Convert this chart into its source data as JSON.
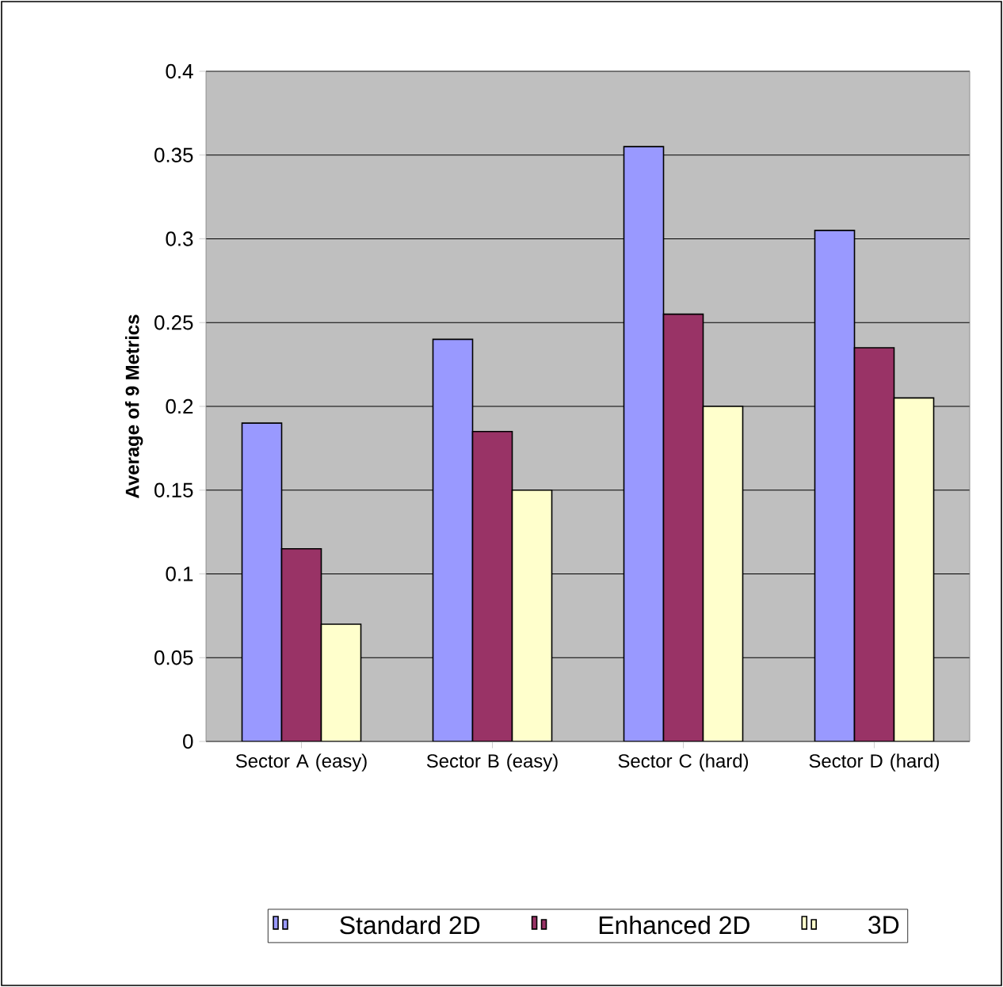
{
  "chart_data": {
    "type": "bar",
    "ylabel": "Average of 9 Metrics",
    "categories": [
      "Sector A (easy)",
      "Sector B (easy)",
      "Sector C (hard)",
      "Sector D (hard)"
    ],
    "series": [
      {
        "name": "Standard 2D",
        "color": "#9999ff",
        "values": [
          0.19,
          0.24,
          0.355,
          0.305
        ]
      },
      {
        "name": "Enhanced 2D",
        "color": "#993366",
        "values": [
          0.115,
          0.185,
          0.255,
          0.235
        ]
      },
      {
        "name": "3D",
        "color": "#ffffcc",
        "values": [
          0.07,
          0.15,
          0.2,
          0.205
        ]
      }
    ],
    "ylim": [
      0,
      0.4
    ],
    "yticks": [
      0,
      0.05,
      0.1,
      0.15,
      0.2,
      0.25,
      0.3,
      0.35,
      0.4
    ],
    "grid": "y",
    "legend": "bottom"
  }
}
